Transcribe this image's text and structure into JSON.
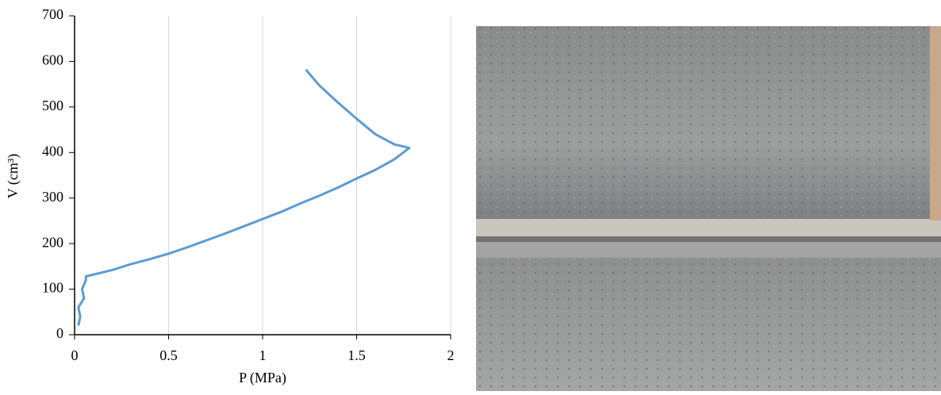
{
  "chart_data": {
    "type": "line",
    "xlabel": "P (MPa)",
    "ylabel": "V (cm³)",
    "x": [
      0.02,
      0.03,
      0.02,
      0.05,
      0.04,
      0.06,
      0.06,
      0.1,
      0.2,
      0.3,
      0.4,
      0.5,
      0.6,
      0.7,
      0.8,
      0.9,
      1.0,
      1.1,
      1.2,
      1.3,
      1.4,
      1.5,
      1.6,
      1.7,
      1.78,
      1.7,
      1.6,
      1.5,
      1.4,
      1.3,
      1.23
    ],
    "values": [
      20,
      40,
      60,
      80,
      100,
      120,
      128,
      132,
      142,
      155,
      166,
      178,
      192,
      207,
      222,
      238,
      254,
      270,
      288,
      305,
      323,
      343,
      362,
      385,
      410,
      418,
      440,
      474,
      510,
      548,
      582
    ],
    "color": "#5b9bd5",
    "xlim": [
      0,
      2
    ],
    "xticks": [
      0,
      0.5,
      1,
      1.5,
      2
    ],
    "ylim": [
      0,
      700
    ],
    "yticks": [
      0,
      100,
      200,
      300,
      400,
      500,
      600,
      700
    ],
    "grid": true
  }
}
